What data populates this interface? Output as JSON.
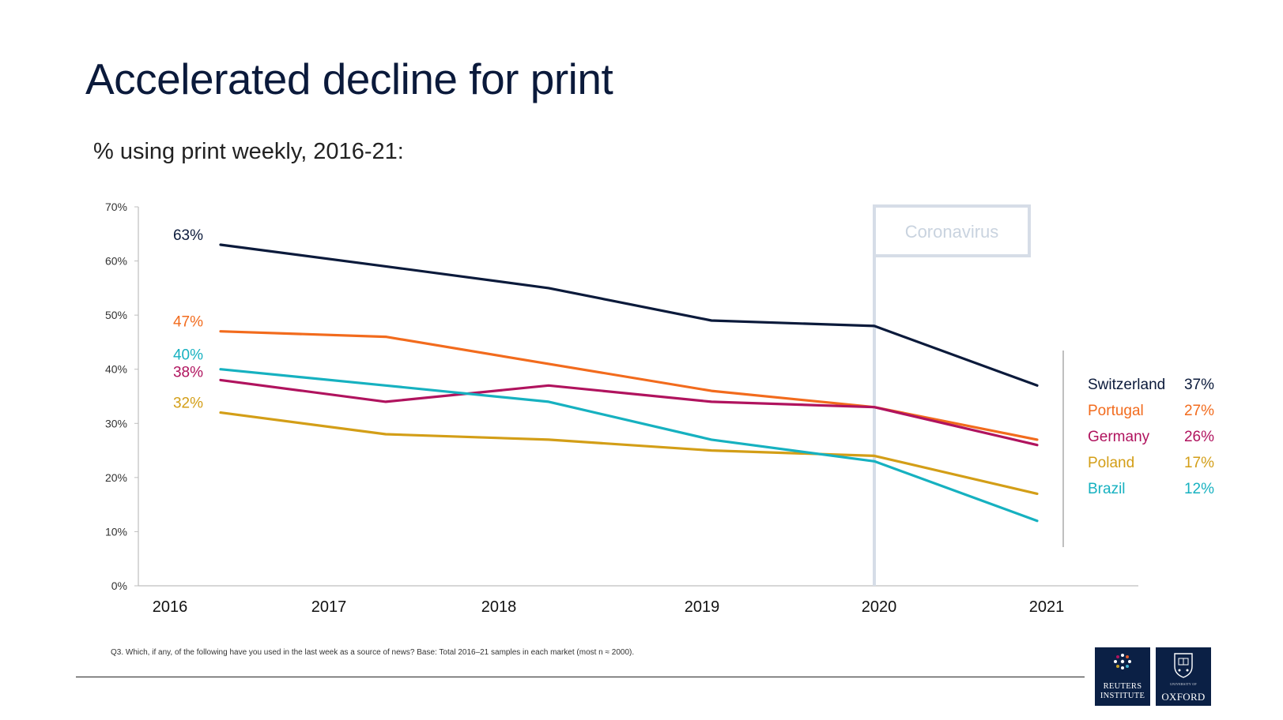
{
  "page": {
    "title": "Accelerated decline for print",
    "subtitle": "% using print weekly, 2016-21:",
    "footnote": "Q3. Which, if any, of the following have you used in the last week as a source of news? Base: Total 2016–21 samples in each market (most n ≈ 2000)."
  },
  "logos": {
    "reuters": {
      "line1": "REUTERS",
      "line2": "INSTITUTE"
    },
    "oxford": {
      "line1": "UNIVERSITY OF",
      "line2": "OXFORD"
    }
  },
  "chart_data": {
    "type": "line",
    "title": "% using print weekly, 2016-21:",
    "x": [
      "2016",
      "2017",
      "2018",
      "2019",
      "2020",
      "2021"
    ],
    "ylim": [
      0,
      70
    ],
    "y_ticks": [
      "0%",
      "10%",
      "20%",
      "30%",
      "40%",
      "50%",
      "60%",
      "70%"
    ],
    "grid": false,
    "annotation": "Coronavirus",
    "legend_position": "right",
    "series": [
      {
        "name": "Switzerland",
        "color": "#0b1a3b",
        "values": [
          63,
          59,
          55,
          49,
          48,
          37
        ],
        "start_label": "63%",
        "end_label": "37%"
      },
      {
        "name": "Portugal",
        "color": "#f26b1d",
        "values": [
          47,
          46,
          41,
          36,
          33,
          27
        ],
        "start_label": "47%",
        "end_label": "27%"
      },
      {
        "name": "Germany",
        "color": "#b0135e",
        "values": [
          38,
          34,
          37,
          34,
          33,
          26
        ],
        "start_label": "38%",
        "end_label": "26%"
      },
      {
        "name": "Poland",
        "color": "#d39e17",
        "values": [
          32,
          28,
          27,
          25,
          24,
          17
        ],
        "start_label": "32%",
        "end_label": "17%"
      },
      {
        "name": "Brazil",
        "color": "#16b1c0",
        "values": [
          40,
          37,
          34,
          27,
          23,
          12
        ],
        "start_label": "40%",
        "end_label": "12%"
      }
    ]
  }
}
